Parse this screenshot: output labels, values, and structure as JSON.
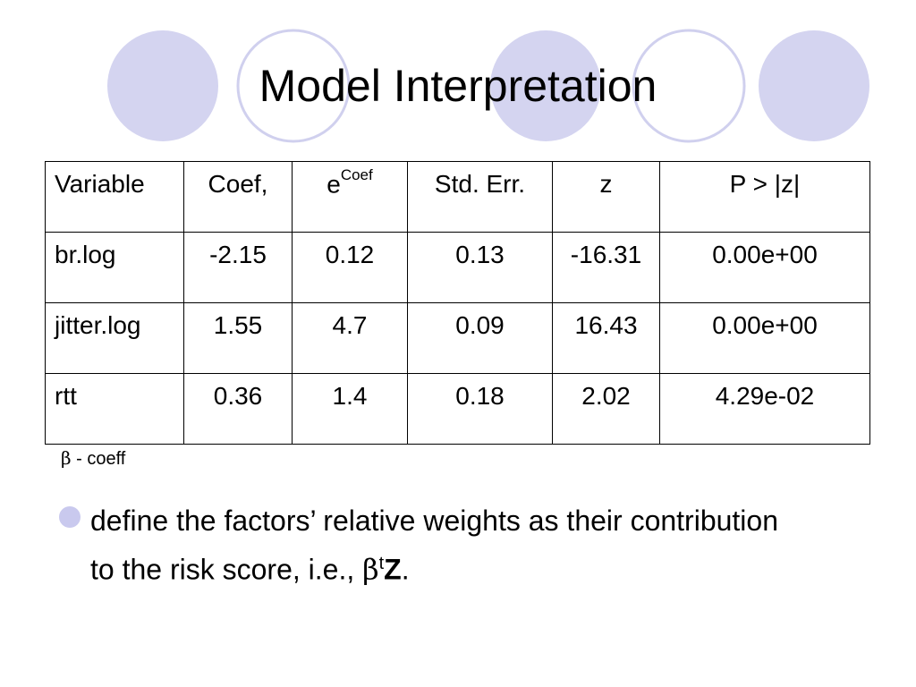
{
  "slide": {
    "title": "Model Interpretation",
    "accent_fill": "#d4d4f0",
    "accent_stroke": "#d0d0ee"
  },
  "table": {
    "headers": {
      "variable": "Variable",
      "coef": "Coef,",
      "exp_base": "e",
      "exp_sup": "Coef",
      "std_err": "Std. Err.",
      "z": "z",
      "p": "P > |z|"
    },
    "rows": [
      {
        "variable": "br.log",
        "coef": "-2.15",
        "exp_coef": "0.12",
        "std_err": "0.13",
        "z": "-16.31",
        "p": "0.00e+00"
      },
      {
        "variable": "jitter.log",
        "coef": "1.55",
        "exp_coef": "4.7",
        "std_err": "0.09",
        "z": "16.43",
        "p": "0.00e+00"
      },
      {
        "variable": "rtt",
        "coef": "0.36",
        "exp_coef": "1.4",
        "std_err": "0.18",
        "z": "2.02",
        "p": "4.29e-02"
      }
    ]
  },
  "note": {
    "symbol": "β",
    "text": " - coeff"
  },
  "bullet": {
    "text": "define the factors’ relative weights as their contribution to the risk score, i.e., ",
    "symbol": "β",
    "superscript": "t",
    "bold": "Z",
    "end": ".",
    "dot_color": "#c9c9ee"
  }
}
